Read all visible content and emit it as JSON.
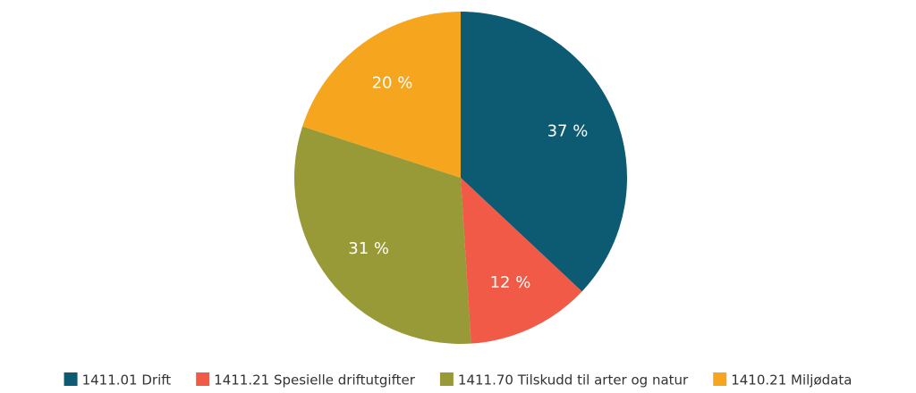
{
  "chart_data": {
    "type": "pie",
    "categories": [
      "1411.01 Drift",
      "1411.21 Spesielle driftutgifter",
      "1411.70 Tilskudd til arter og natur",
      "1410.21 Miljødata"
    ],
    "values": [
      37,
      12,
      31,
      20
    ],
    "value_labels": [
      "37 %",
      "12 %",
      "31 %",
      "20 %"
    ],
    "colors": [
      "#0d5a73",
      "#f05a46",
      "#979a37",
      "#f6a61e"
    ],
    "legend": "bottom"
  }
}
